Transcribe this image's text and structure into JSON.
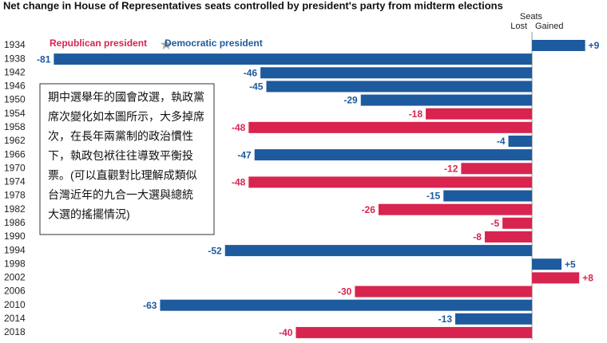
{
  "chart_data": {
    "type": "bar",
    "orientation": "horizontal",
    "title": "Net change in House of Representatives seats controlled by president's party from midterm elections",
    "axis_title": "Seats",
    "lost_label": "Lost",
    "gained_label": "Gained",
    "categories": [
      "1934",
      "1938",
      "1942",
      "1946",
      "1950",
      "1954",
      "1958",
      "1962",
      "1966",
      "1970",
      "1974",
      "1978",
      "1982",
      "1986",
      "1990",
      "1994",
      "1998",
      "2002",
      "2006",
      "2010",
      "2014",
      "2018"
    ],
    "series": [
      {
        "name": "Republican president",
        "color": "#d8244f",
        "values": [
          null,
          null,
          null,
          null,
          null,
          -18,
          -48,
          null,
          null,
          -12,
          -48,
          null,
          -26,
          -5,
          -8,
          null,
          null,
          8,
          -30,
          null,
          null,
          -40
        ],
        "value_labels": [
          null,
          null,
          null,
          null,
          null,
          "-18",
          "-48",
          null,
          null,
          "-12",
          "-48",
          null,
          "-26",
          "-5",
          "-8",
          null,
          null,
          "+8",
          "-30",
          null,
          null,
          "-40"
        ]
      },
      {
        "name": "Democratic president",
        "color": "#1d5a9e",
        "values": [
          9,
          -81,
          -46,
          -45,
          -29,
          null,
          null,
          -4,
          -47,
          null,
          null,
          -15,
          null,
          null,
          null,
          -52,
          5,
          null,
          null,
          -63,
          -13,
          null
        ],
        "value_labels": [
          "+9",
          "-81",
          "-46",
          "-45",
          "-29",
          null,
          null,
          "-4",
          "-47",
          null,
          null,
          "-15",
          null,
          null,
          null,
          "-52",
          "+5",
          null,
          null,
          "-63",
          "-13",
          null
        ]
      }
    ],
    "xlim": [
      -82,
      10
    ],
    "annotation": [
      "期中選舉年的國會改選，執政黨",
      "席次變化如本圖所示，大多掉席",
      "次，在長年兩黨制的政治慣性",
      "下，執政包袱往往導致平衡投",
      "票。(可以直觀對比理解成類似",
      "台灣近年的九合一大選與總統",
      "大選的搖擺情況)"
    ]
  }
}
